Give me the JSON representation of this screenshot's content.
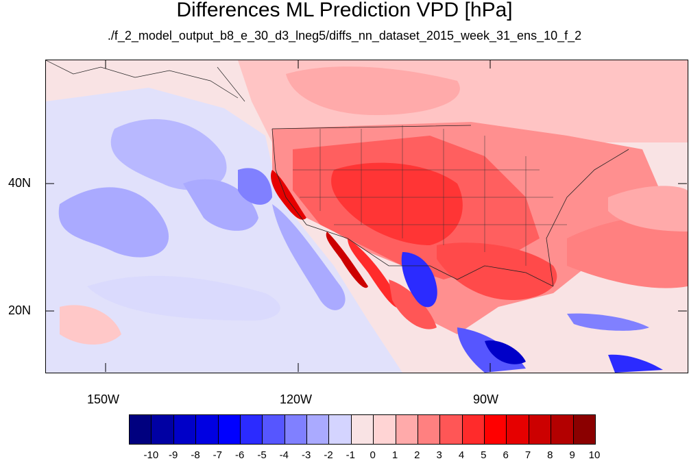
{
  "title": "Differences ML Prediction VPD [hPa]",
  "subtitle": "./f_2_model_output_b8_e_30_d3_lneg5/diffs_nn_dataset_2015_week_31_ens_10_f_2",
  "map": {
    "lat_labels": [
      "40N",
      "20N"
    ],
    "lon_labels": [
      "150W",
      "120W",
      "90W"
    ]
  },
  "colorbar": {
    "labels": [
      "-10",
      "-9",
      "-8",
      "-7",
      "-6",
      "-5",
      "-4",
      "-3",
      "-2",
      "-1",
      "0",
      "1",
      "2",
      "3",
      "4",
      "5",
      "6",
      "7",
      "8",
      "9",
      "10"
    ],
    "colors": [
      "#00007f",
      "#0000a3",
      "#0000c8",
      "#0000e2",
      "#0000ff",
      "#2b2bff",
      "#5656ff",
      "#8080ff",
      "#aaaaff",
      "#d4d4ff",
      "#f9e3e4",
      "#ffd4d4",
      "#ffaaaa",
      "#ff8080",
      "#ff5656",
      "#ff2b2b",
      "#ff0000",
      "#e60000",
      "#cc0000",
      "#b30000",
      "#8b0000"
    ]
  }
}
